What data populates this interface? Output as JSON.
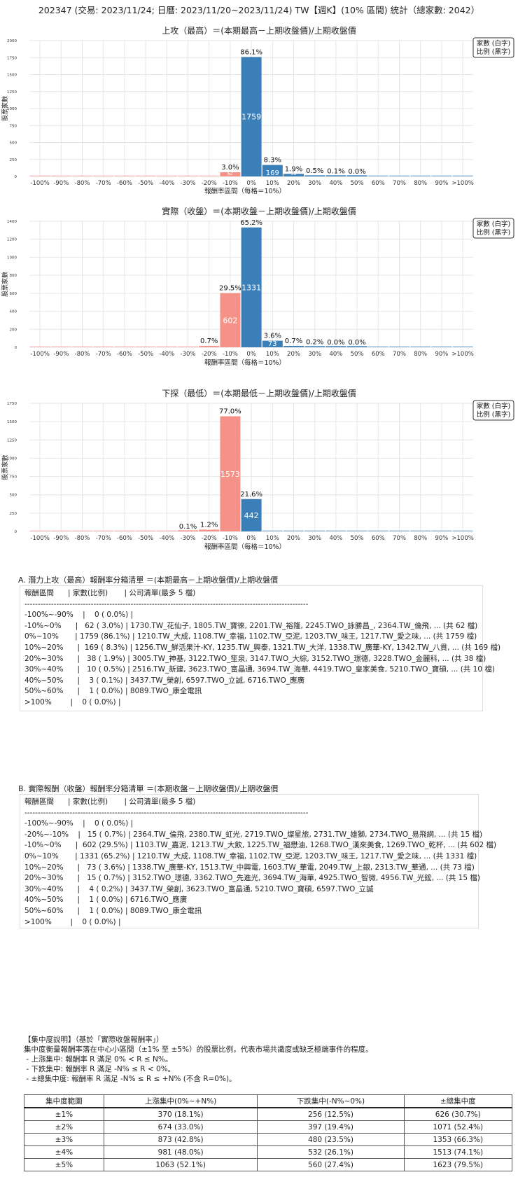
{
  "page_title": "202347 (交易: 2023/11/24; 日曆: 2023/11/20~2023/11/24) TW【週K】(10% 區間) 統計（總家數: 2042）",
  "legend": [
    "家數 (白字)",
    "比例 (黑字)"
  ],
  "colors": {
    "positive": "#3a7fb8",
    "negative": "#f4928a",
    "grid": "#e6e6e6"
  },
  "chart_data": [
    {
      "type": "bar",
      "title": "上攻（最高）＝(本期最高－上期收盤價)/上期收盤價",
      "xlabel": "報酬率區間（每格＝10%）",
      "ylabel": "股票家數",
      "categories": [
        "-100%",
        "-90%",
        "-80%",
        "-70%",
        "-60%",
        "-50%",
        "-40%",
        "-30%",
        "-20%",
        "-10%",
        "0%",
        "10%",
        "20%",
        "30%",
        "40%",
        "50%",
        "60%",
        "70%",
        "80%",
        "90%",
        ">100%"
      ],
      "values": [
        0,
        0,
        0,
        0,
        0,
        0,
        0,
        0,
        0,
        62,
        1759,
        169,
        38,
        10,
        3,
        1,
        0,
        0,
        0,
        0,
        0
      ],
      "pct_labels": [
        "",
        "",
        "",
        "",
        "",
        "",
        "",
        "",
        "",
        "3.0%",
        "86.1%",
        "8.3%",
        "1.9%",
        "0.5%",
        "0.1%",
        "0.0%",
        "",
        "",
        "",
        "",
        ""
      ],
      "yticks": [
        0,
        250,
        500,
        750,
        1000,
        1250,
        1500,
        1750,
        2000
      ],
      "ylim": [
        0,
        2000
      ],
      "grid": true,
      "legend_position": "top-right"
    },
    {
      "type": "bar",
      "title": "實際（收盤）＝(本期收盤－上期收盤價)/上期收盤價",
      "xlabel": "報酬率區間（每格＝10%）",
      "ylabel": "股票家數",
      "categories": [
        "-100%",
        "-90%",
        "-80%",
        "-70%",
        "-60%",
        "-50%",
        "-40%",
        "-30%",
        "-20%",
        "-10%",
        "0%",
        "10%",
        "20%",
        "30%",
        "40%",
        "50%",
        "60%",
        "70%",
        "80%",
        "90%",
        ">100%"
      ],
      "values": [
        0,
        0,
        0,
        0,
        0,
        0,
        0,
        0,
        15,
        602,
        1331,
        73,
        15,
        4,
        1,
        1,
        0,
        0,
        0,
        0,
        0
      ],
      "pct_labels": [
        "",
        "",
        "",
        "",
        "",
        "",
        "",
        "",
        "0.7%",
        "29.5%",
        "65.2%",
        "3.6%",
        "0.7%",
        "0.2%",
        "0.0%",
        "0.0%",
        "",
        "",
        "",
        "",
        ""
      ],
      "yticks": [
        0,
        200,
        400,
        600,
        800,
        1000,
        1200,
        1400
      ],
      "ylim": [
        0,
        1400
      ],
      "grid": true,
      "legend_position": "top-right"
    },
    {
      "type": "bar",
      "title": "下探（最低）＝(本期最低－上期收盤價)/上期收盤價",
      "xlabel": "報酬率區間（每格＝10%）",
      "ylabel": "股票家數",
      "categories": [
        "-100%",
        "-90%",
        "-80%",
        "-70%",
        "-60%",
        "-50%",
        "-40%",
        "-30%",
        "-20%",
        "-10%",
        "0%",
        "10%",
        "20%",
        "30%",
        "40%",
        "50%",
        "60%",
        "70%",
        "80%",
        "90%",
        ">100%"
      ],
      "values": [
        0,
        0,
        0,
        0,
        0,
        0,
        0,
        2,
        25,
        1573,
        442,
        0,
        0,
        0,
        0,
        0,
        0,
        0,
        0,
        0,
        0
      ],
      "pct_labels": [
        "",
        "",
        "",
        "",
        "",
        "",
        "",
        "0.1%",
        "1.2%",
        "77.0%",
        "21.6%",
        "",
        "",
        "",
        "",
        "",
        "",
        "",
        "",
        "",
        ""
      ],
      "yticks": [
        0,
        250,
        500,
        750,
        1000,
        1250,
        1500,
        1750
      ],
      "ylim": [
        0,
        1750
      ],
      "grid": true,
      "legend_position": "top-right"
    }
  ],
  "section_a": {
    "title": "A. 潛力上攻（最高）報酬率分箱清單 ＝(本期最高－上期收盤價)/上期收盤價",
    "lines": [
      "報酬區間      | 家數(比例)       | 公司清單(最多 5 檔)",
      "-----------------------------------------------------------------------------------------------------------",
      "-100%~-90%    |    0 ( 0.0%) |",
      "-10%~0%      |   62 ( 3.0%) | 1730.TW_花仙子, 1805.TW_寶徠, 2201.TW_裕隆, 2245.TWO_詠勝昌_, 2364.TW_倫飛, ... (共 62 檔)",
      "0%~10%       | 1759 (86.1%) | 1210.TW_大成, 1108.TW_幸福, 1102.TW_亞泥, 1203.TW_味王, 1217.TW_愛之味, ... (共 1759 檔)",
      "10%~20%      |  169 ( 8.3%) | 1256.TW_鮮活果汁-KY, 1235.TW_興泰, 1321.TW_大洋, 1338.TW_廣華-KY, 1342.TW_八貫, ... (共 169 檔)",
      "20%~30%      |   38 ( 1.9%) | 3005.TW_神基, 3122.TWO_笙泉, 3147.TWO_大綜, 3152.TWO_璟德, 3228.TWO_金麗科, ... (共 38 檔)",
      "30%~40%      |   10 ( 0.5%) | 2516.TW_新建, 3623.TWO_富晶通, 3694.TW_海華, 4419.TWO_皇家美食, 5210.TWO_寶碩, ... (共 10 檔)",
      "40%~50%      |    3 ( 0.1%) | 3437.TW_榮創, 6597.TWO_立誠, 6716.TWO_應廣",
      "50%~60%      |    1 ( 0.0%) | 8089.TWO_康全電訊",
      ">100%        |    0 ( 0.0%) |"
    ]
  },
  "section_b": {
    "title": "B. 實際報酬（收盤）報酬率分箱清單 ＝(本期收盤－上期收盤價)/上期收盤價",
    "lines": [
      "報酬區間      | 家數(比例)       | 公司清單(最多 5 檔)",
      "-----------------------------------------------------------------------------------------------------------",
      "-100%~-90%    |    0 ( 0.0%) |",
      "-20%~-10%    |   15 ( 0.7%) | 2364.TW_倫飛, 2380.TW_虹光, 2719.TWO_燦星旅, 2731.TW_雄獅, 2734.TWO_易飛網, ... (共 15 檔)",
      "-10%~0%      |  602 (29.5%) | 1103.TW_嘉泥, 1213.TW_大飲, 1225.TW_福懋油, 1268.TWO_漢來美食, 1269.TWO_乾杯, ... (共 602 檔)",
      "0%~10%       | 1331 (65.2%) | 1210.TW_大成, 1108.TW_幸福, 1102.TW_亞泥, 1203.TW_味王, 1217.TW_愛之味, ... (共 1331 檔)",
      "10%~20%      |   73 ( 3.6%) | 1338.TW_廣華-KY, 1513.TW_中興電, 1603.TW_華電, 2049.TW_上銀, 2313.TW_華通, ... (共 73 檔)",
      "20%~30%      |   15 ( 0.7%) | 3152.TWO_璟德, 3362.TWO_先進光, 3694.TW_海華, 4925.TWO_智微, 4956.TW_光鋐, ... (共 15 檔)",
      "30%~40%      |    4 ( 0.2%) | 3437.TW_榮創, 3623.TWO_富晶通, 5210.TWO_寶碩, 6597.TWO_立誠",
      "40%~50%      |    1 ( 0.0%) | 6716.TWO_應廣",
      "50%~60%      |    1 ( 0.0%) | 8089.TWO_康全電訊",
      ">100%        |    0 ( 0.0%) |"
    ]
  },
  "concentration": {
    "lines": [
      "【集中度說明】（基於「實際收盤報酬率」）",
      "集中度衡量報酬率落在中心小區間（±1% 至 ±5%）的股票比例，代表市場共識度或缺乏極端事件的程度。",
      " - 上漲集中: 報酬率 R 滿足 0% < R ≤ N%。",
      " - 下跌集中: 報酬率 R 滿足 -N% ≤ R < 0%。",
      " - ±總集中度: 報酬率 R 滿足 -N% ≤ R ≤ +N% (不含 R=0%)。"
    ],
    "table": {
      "headers": [
        "集中度範圍",
        "上漲集中(0%~+N%)",
        "下跌集中(-N%~0%)",
        "±總集中度"
      ],
      "rows": [
        [
          "±1%",
          "370 (18.1%)",
          "256 (12.5%)",
          "626 (30.7%)"
        ],
        [
          "±2%",
          "674 (33.0%)",
          "397 (19.4%)",
          "1071 (52.4%)"
        ],
        [
          "±3%",
          "873 (42.8%)",
          "480 (23.5%)",
          "1353 (66.3%)"
        ],
        [
          "±4%",
          "981 (48.0%)",
          "532 (26.1%)",
          "1513 (74.1%)"
        ],
        [
          "±5%",
          "1063 (52.1%)",
          "560 (27.4%)",
          "1623 (79.5%)"
        ]
      ]
    }
  }
}
